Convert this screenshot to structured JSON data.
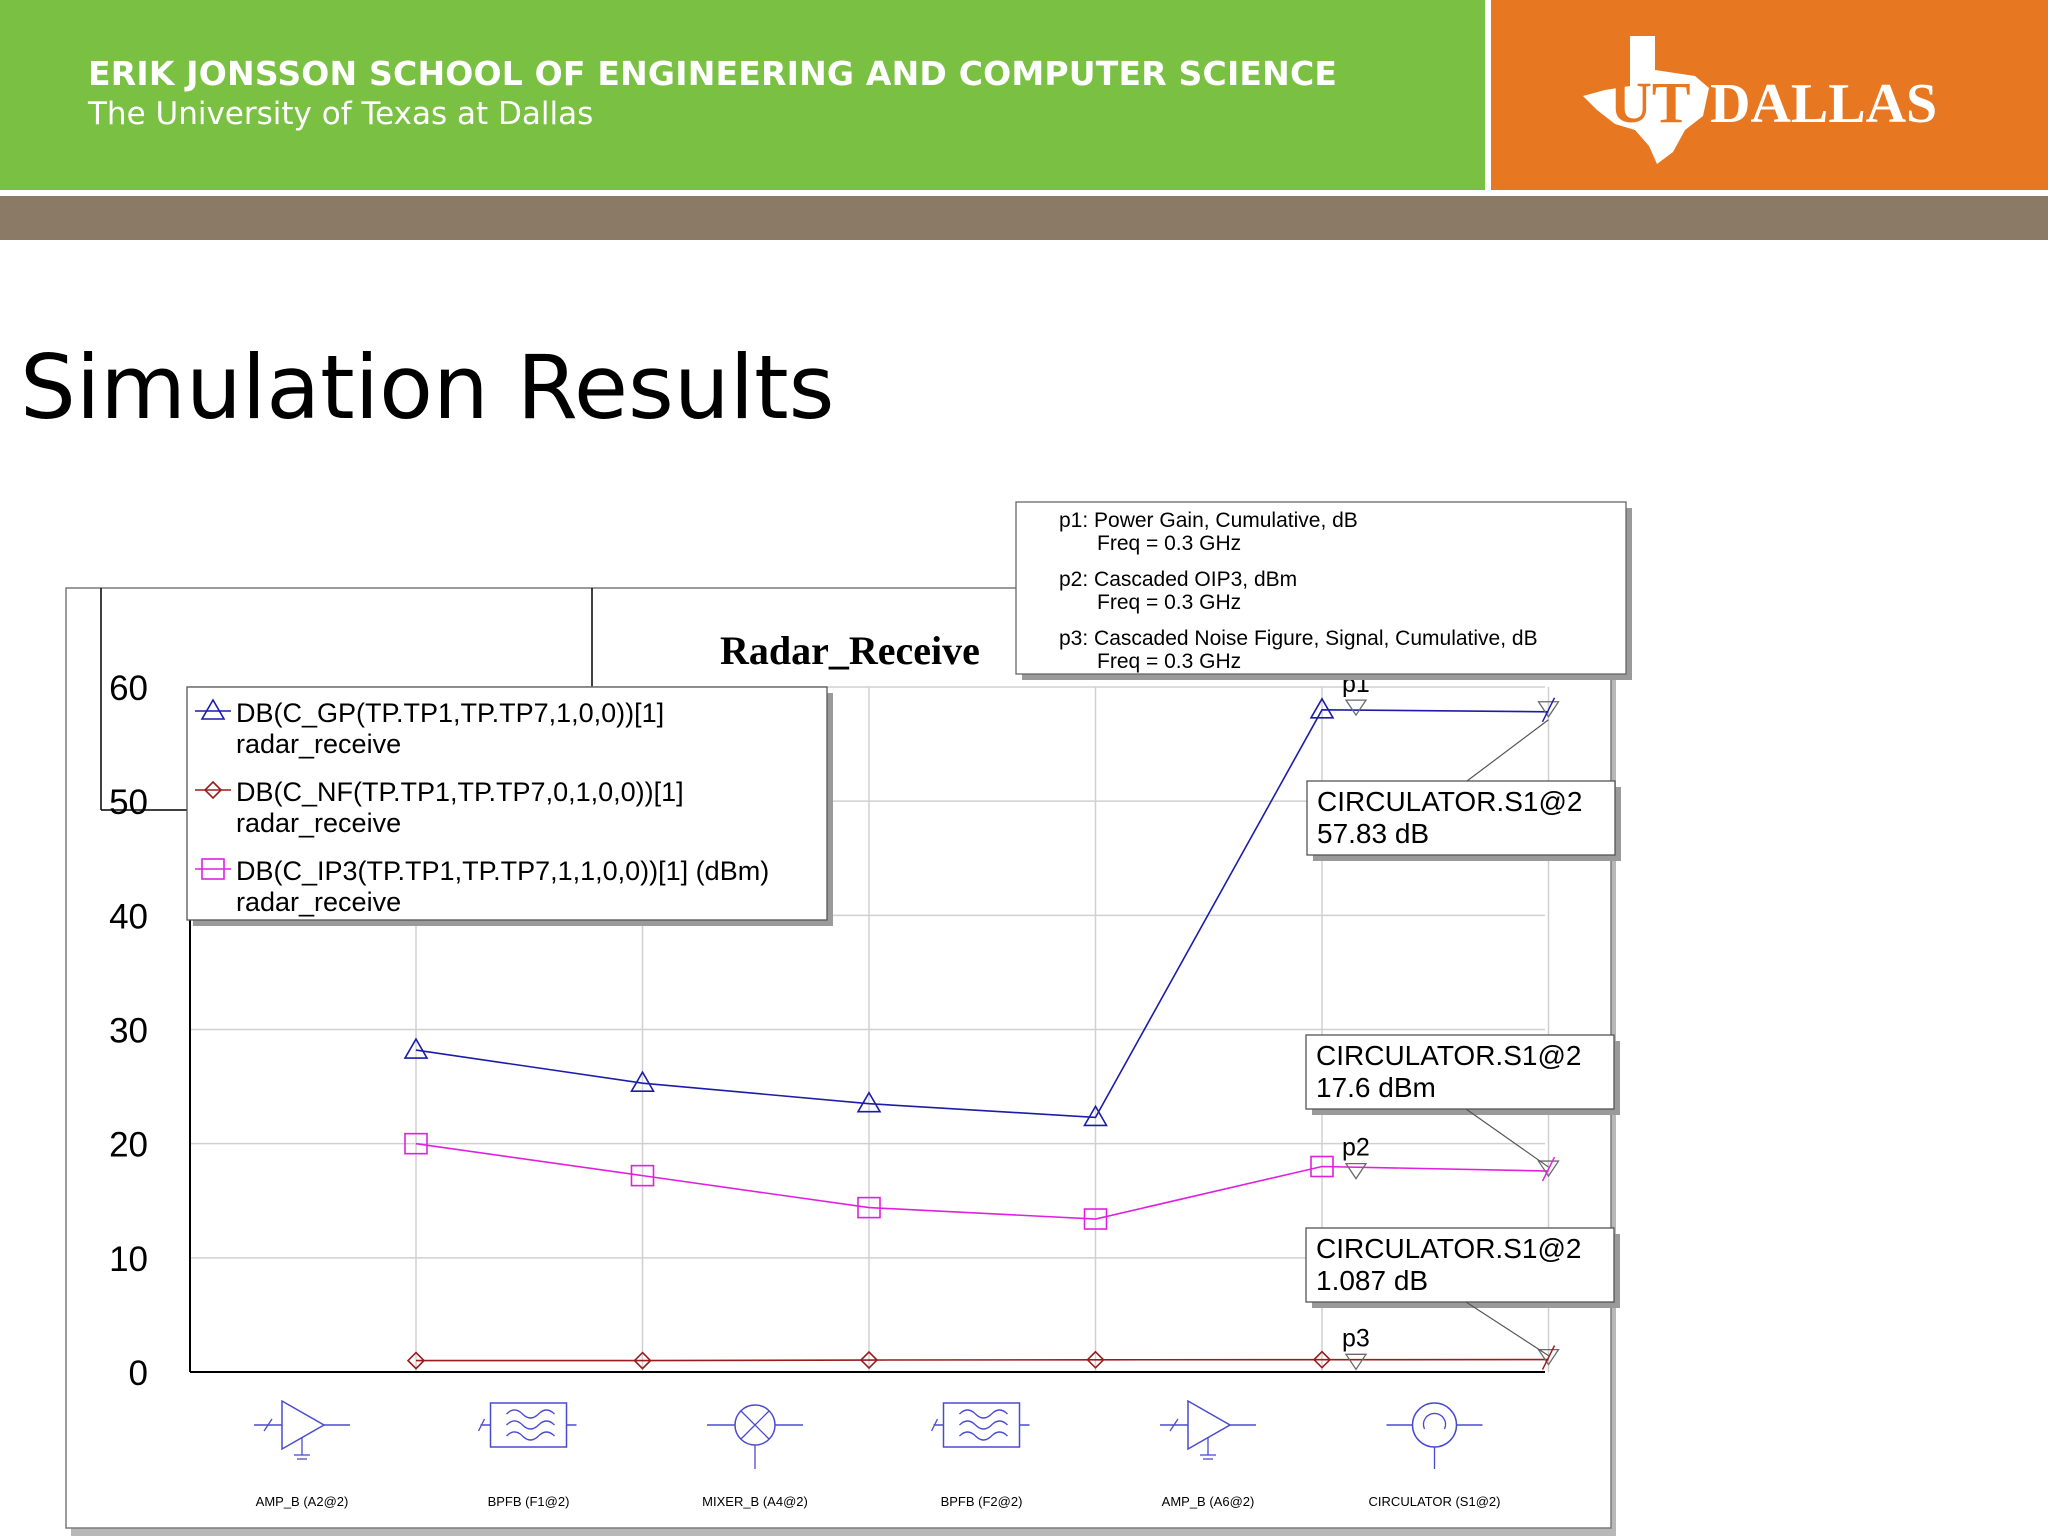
{
  "header": {
    "school": "ERIK JONSSON SCHOOL OF ENGINEERING AND COMPUTER SCIENCE",
    "university": "The University of Texas at Dallas",
    "logo_text": "UT DALLAS",
    "colors": {
      "green": "#7ac143",
      "orange": "#e87722",
      "brown": "#8b7a65"
    }
  },
  "slide": {
    "title": "Simulation Results"
  },
  "chart_data": {
    "type": "line",
    "title": "Radar_Receive",
    "ylim": [
      0,
      60
    ],
    "y_ticks": [
      "0",
      "10",
      "20",
      "30",
      "40",
      "50",
      "60"
    ],
    "grid": true,
    "categories": [
      "AMP_B (A2@2)",
      "BPFB (F1@2)",
      "MIXER_B (A4@2)",
      "BPFB (F2@2)",
      "AMP_B (A6@2)",
      "CIRCULATOR (S1@2)"
    ],
    "component_icons": [
      "amplifier-icon",
      "bandpass-filter-icon",
      "mixer-icon",
      "bandpass-filter-icon",
      "amplifier-icon",
      "circulator-icon"
    ],
    "series": [
      {
        "name": "DB(C_GP(TP.TP1,TP.TP7,1,0,0))[1]",
        "sub": "radar_receive",
        "marker": "triangle",
        "color": "#1c1ca8",
        "points": [
          [
            1,
            28.2
          ],
          [
            2,
            25.3
          ],
          [
            3,
            23.5
          ],
          [
            4,
            22.3
          ],
          [
            5,
            58.0
          ],
          [
            6,
            57.83
          ]
        ]
      },
      {
        "name": "DB(C_NF(TP.TP1,TP.TP7,0,1,0,0))[1]",
        "sub": "radar_receive",
        "marker": "diamond",
        "color": "#9b1b1b",
        "points": [
          [
            1,
            1.0
          ],
          [
            2,
            1.0
          ],
          [
            3,
            1.05
          ],
          [
            4,
            1.07
          ],
          [
            5,
            1.08
          ],
          [
            6,
            1.087
          ]
        ]
      },
      {
        "name": "DB(C_IP3(TP.TP1,TP.TP7,1,1,0,0))[1] (dBm)",
        "sub": "radar_receive",
        "marker": "square",
        "color": "#e020e0",
        "points": [
          [
            1,
            20.0
          ],
          [
            2,
            17.2
          ],
          [
            3,
            14.4
          ],
          [
            4,
            13.4
          ],
          [
            5,
            18.0
          ],
          [
            6,
            17.6
          ]
        ]
      }
    ],
    "legend_placement": "top-left",
    "markers": [
      {
        "id": "p1",
        "label": "p1",
        "x": 5.15,
        "y": 58.5,
        "line1": "p1: Power Gain, Cumulative, dB",
        "line2": "Freq = 0.3 GHz"
      },
      {
        "id": "p2",
        "label": "p2",
        "x": 5.15,
        "y": 17.9,
        "line1": "p2: Cascaded OIP3, dBm",
        "line2": "Freq = 0.3 GHz"
      },
      {
        "id": "p3",
        "label": "p3",
        "x": 5.15,
        "y": 1.2,
        "line1": "p3: Cascaded Noise Figure, Signal, Cumulative, dB",
        "line2": "Freq = 0.3 GHz"
      }
    ],
    "callouts": [
      {
        "line1": "CIRCULATOR.S1@2",
        "line2": "57.83 dB",
        "x": 6,
        "y": 57.83
      },
      {
        "line1": "CIRCULATOR.S1@2",
        "line2": "17.6 dBm",
        "x": 6,
        "y": 17.6
      },
      {
        "line1": "CIRCULATOR.S1@2",
        "line2": "1.087 dB",
        "x": 6,
        "y": 1.087
      }
    ]
  }
}
